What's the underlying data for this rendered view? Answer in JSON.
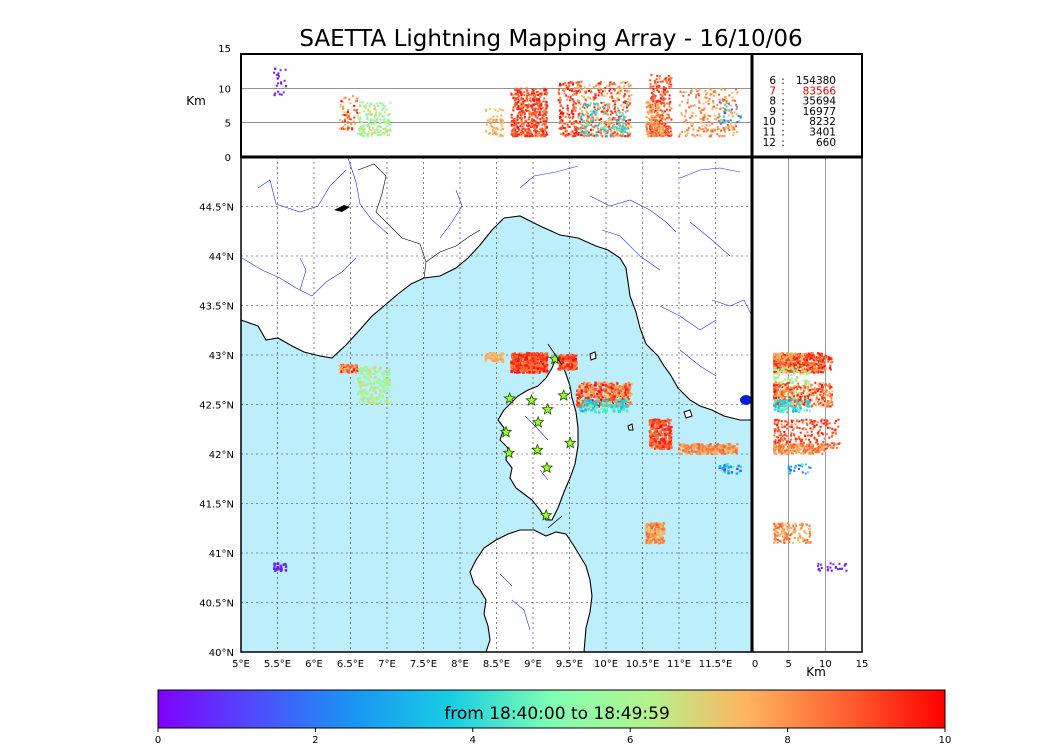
{
  "title": "SAETTA Lightning Mapping Array - 16/10/06",
  "top_panel": {
    "ylabel": "Km",
    "yticks": [
      "0",
      "5",
      "10",
      "15"
    ],
    "ylim": [
      0,
      15
    ]
  },
  "right_panel": {
    "xlabel": "Km",
    "xticks": [
      "0",
      "5",
      "10",
      "15"
    ],
    "xlim": [
      0,
      15
    ]
  },
  "map": {
    "lon_range": [
      5.0,
      12.0
    ],
    "lat_range": [
      40.0,
      45.0
    ],
    "lon_ticks": [
      "5°E",
      "5.5°E",
      "6°E",
      "6.5°E",
      "7°E",
      "7.5°E",
      "8°E",
      "8.5°E",
      "9°E",
      "9.5°E",
      "10°E",
      "10.5°E",
      "11°E",
      "11.5°E"
    ],
    "lat_ticks": [
      "40°N",
      "40.5°N",
      "41°N",
      "41.5°N",
      "42°N",
      "42.5°N",
      "43°N",
      "43.5°N",
      "44°N",
      "44.5°N"
    ],
    "sea_color": "#bdeefc",
    "land_color": "#ffffff",
    "grid": "dotted",
    "stations": [
      [
        8.68,
        42.56
      ],
      [
        8.98,
        42.54
      ],
      [
        9.07,
        42.32
      ],
      [
        9.2,
        42.45
      ],
      [
        9.42,
        42.59
      ],
      [
        8.63,
        42.22
      ],
      [
        8.67,
        42.01
      ],
      [
        9.06,
        42.04
      ],
      [
        9.51,
        42.11
      ],
      [
        9.19,
        41.86
      ],
      [
        9.3,
        42.96
      ],
      [
        9.18,
        41.38
      ]
    ]
  },
  "stats": [
    {
      "k": "6",
      "v": "154380",
      "color": "#000000"
    },
    {
      "k": "7",
      "v": "83566",
      "color": "#e00000"
    },
    {
      "k": "8",
      "v": "35694",
      "color": "#000000"
    },
    {
      "k": "9",
      "v": "16977",
      "color": "#000000"
    },
    {
      "k": "10",
      "v": "8232",
      "color": "#000000"
    },
    {
      "k": "11",
      "v": "3401",
      "color": "#000000"
    },
    {
      "k": "12",
      "v": "660",
      "color": "#000000"
    }
  ],
  "colorbar": {
    "label": "from 18:40:00 to 18:49:59",
    "ticks": [
      "0",
      "2",
      "4",
      "6",
      "8",
      "10"
    ],
    "range": [
      0,
      10
    ],
    "colormap": "rainbow"
  },
  "chart_data": {
    "type": "scatter",
    "title": "SAETTA Lightning Mapping Array - 16/10/06",
    "xlabel": "",
    "ylabel": "",
    "xlim": [
      5.0,
      12.0
    ],
    "ylim": [
      40.0,
      45.0
    ],
    "clusters": [
      {
        "lon": [
          8.7,
          9.2
        ],
        "lat": [
          42.82,
          43.02
        ],
        "alt": [
          3,
          10
        ],
        "time": [
          8,
          10
        ],
        "count": 500
      },
      {
        "lon": [
          9.35,
          9.6
        ],
        "lat": [
          42.85,
          43.0
        ],
        "alt": [
          3,
          11
        ],
        "time": [
          8,
          10
        ],
        "count": 150
      },
      {
        "lon": [
          8.35,
          8.6
        ],
        "lat": [
          42.93,
          43.02
        ],
        "alt": [
          3,
          7
        ],
        "time": [
          7,
          8
        ],
        "count": 60
      },
      {
        "lon": [
          6.35,
          6.6
        ],
        "lat": [
          42.82,
          42.9
        ],
        "alt": [
          4,
          9
        ],
        "time": [
          7,
          10
        ],
        "count": 60
      },
      {
        "lon": [
          6.6,
          7.05
        ],
        "lat": [
          42.5,
          42.88
        ],
        "alt": [
          3,
          8
        ],
        "time": [
          5,
          7
        ],
        "count": 180
      },
      {
        "lon": [
          9.6,
          10.35
        ],
        "lat": [
          42.48,
          42.72
        ],
        "alt": [
          3,
          11
        ],
        "time": [
          7,
          10
        ],
        "count": 400
      },
      {
        "lon": [
          9.65,
          10.3
        ],
        "lat": [
          42.42,
          42.55
        ],
        "alt": [
          3,
          8
        ],
        "time": [
          3,
          5
        ],
        "count": 120
      },
      {
        "lon": [
          10.6,
          10.9
        ],
        "lat": [
          42.05,
          42.35
        ],
        "alt": [
          3,
          12
        ],
        "time": [
          8,
          10
        ],
        "count": 250
      },
      {
        "lon": [
          11.0,
          11.8
        ],
        "lat": [
          42.0,
          42.1
        ],
        "alt": [
          3,
          10
        ],
        "time": [
          7,
          9
        ],
        "count": 220
      },
      {
        "lon": [
          10.55,
          10.8
        ],
        "lat": [
          41.1,
          41.3
        ],
        "alt": [
          3,
          8
        ],
        "time": [
          7,
          9
        ],
        "count": 150
      },
      {
        "lon": [
          5.45,
          5.62
        ],
        "lat": [
          40.82,
          40.9
        ],
        "alt": [
          9,
          13
        ],
        "time": [
          0,
          1
        ],
        "count": 25
      },
      {
        "lon": [
          11.55,
          11.85
        ],
        "lat": [
          41.8,
          41.9
        ],
        "alt": [
          5,
          8
        ],
        "time": [
          1,
          5
        ],
        "count": 30
      }
    ]
  }
}
